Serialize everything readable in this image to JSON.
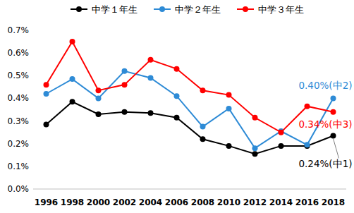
{
  "chart_data": {
    "type": "line",
    "categories": [
      "1996",
      "1998",
      "2000",
      "2002",
      "2004",
      "2006",
      "2008",
      "2010",
      "2012",
      "2014",
      "2016",
      "2018"
    ],
    "series": [
      {
        "name": "中学１年生",
        "color": "#000000",
        "marker": "circle",
        "annotation": "0.24%(中1)",
        "values": [
          0.285,
          0.385,
          0.33,
          0.34,
          0.335,
          0.315,
          0.22,
          0.19,
          0.155,
          0.19,
          0.19,
          0.235
        ]
      },
      {
        "name": "中学２年生",
        "color": "#2e8bd6",
        "marker": "circle",
        "annotation": "0.40%(中2)",
        "values": [
          0.42,
          0.485,
          0.4,
          0.52,
          0.49,
          0.41,
          0.275,
          0.355,
          0.18,
          0.255,
          0.195,
          0.4
        ]
      },
      {
        "name": "中学３年生",
        "color": "#ff0000",
        "marker": "circle",
        "annotation": "0.34%(中3)",
        "values": [
          0.46,
          0.65,
          0.435,
          0.46,
          0.57,
          0.53,
          0.435,
          0.415,
          0.315,
          0.25,
          0.365,
          0.34
        ]
      }
    ],
    "ylim": [
      0,
      0.7
    ],
    "yticks": [
      {
        "value": 0,
        "label": "0.0%"
      },
      {
        "value": 0.1,
        "label": "0.1%"
      },
      {
        "value": 0.2,
        "label": "0.2%"
      },
      {
        "value": 0.3,
        "label": "0.3%"
      },
      {
        "value": 0.4,
        "label": "0.4%"
      },
      {
        "value": 0.5,
        "label": "0.5%"
      },
      {
        "value": 0.6,
        "label": "0.6%"
      },
      {
        "value": 0.7,
        "label": "0.7%"
      }
    ],
    "grid": false,
    "legend": "top"
  }
}
